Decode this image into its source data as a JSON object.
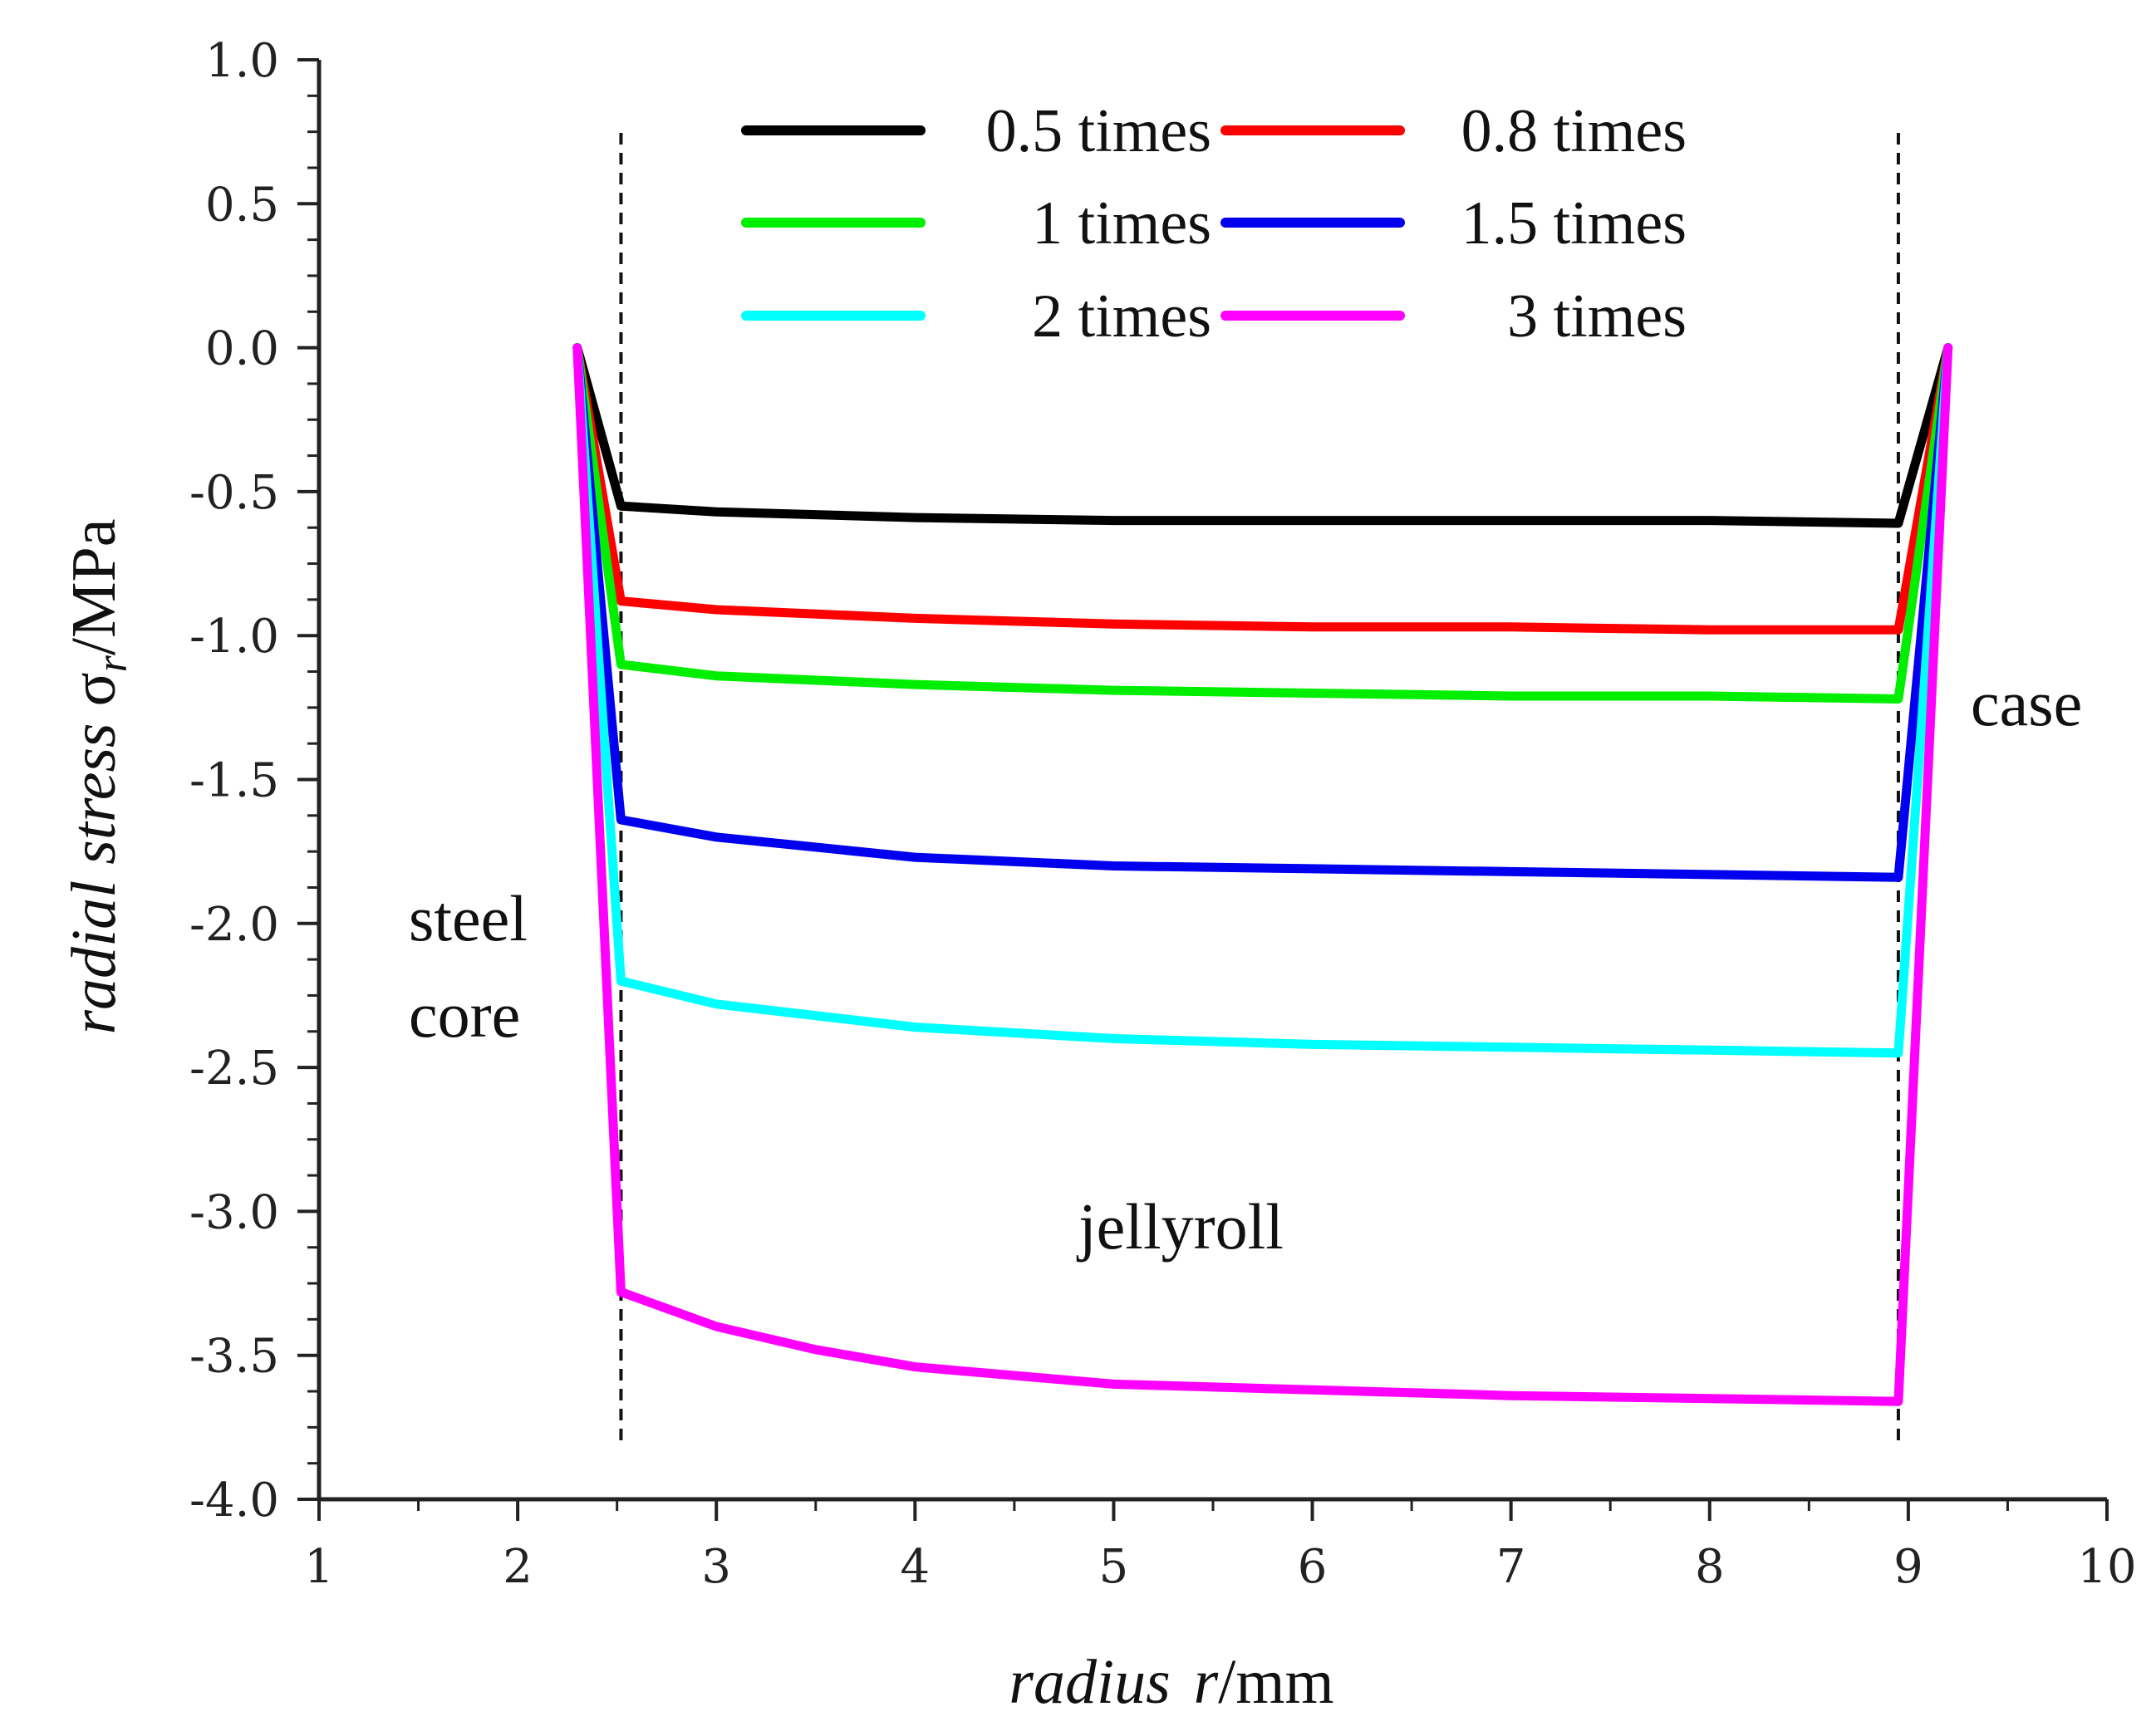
{
  "chart_data": {
    "type": "line",
    "title": "",
    "xlabel": {
      "italic": "radius",
      "symbol": "r",
      "unit": "/mm"
    },
    "ylabel": {
      "italic": "radial stress",
      "symbol": "σ",
      "subscript": "r",
      "unit": "/MPa"
    },
    "xlim": [
      1,
      10
    ],
    "ylim": [
      -4.0,
      1.0
    ],
    "xticks": [
      1,
      2,
      3,
      4,
      5,
      6,
      7,
      8,
      9,
      10
    ],
    "yticks": [
      1.0,
      0.5,
      0.0,
      -0.5,
      -1.0,
      -1.5,
      -2.0,
      -2.5,
      -3.0,
      -3.5,
      -4.0
    ],
    "ytick_labels": [
      "1.0",
      "0.5",
      "0.0",
      "-0.5",
      "-1.0",
      "-1.5",
      "-2.0",
      "-2.5",
      "-3.0",
      "-3.5",
      "-4.0"
    ],
    "legend_position": "top-center",
    "grid": false,
    "boundaries": [
      2.52,
      8.95
    ],
    "annotations": {
      "steel": "steel",
      "core": "core",
      "jellyroll": "jellyroll",
      "case": "case"
    },
    "series": [
      {
        "name": "0.5 times",
        "color": "#000000",
        "x": [
          2.3,
          2.52,
          3.0,
          4.0,
          5.0,
          6.0,
          7.0,
          8.0,
          8.95,
          9.2
        ],
        "y": [
          0.0,
          -0.55,
          -0.57,
          -0.59,
          -0.6,
          -0.6,
          -0.6,
          -0.6,
          -0.61,
          0.0
        ]
      },
      {
        "name": "0.8 times",
        "color": "#ff0000",
        "x": [
          2.3,
          2.52,
          3.0,
          4.0,
          5.0,
          6.0,
          7.0,
          8.0,
          8.95,
          9.2
        ],
        "y": [
          0.0,
          -0.88,
          -0.91,
          -0.94,
          -0.96,
          -0.97,
          -0.97,
          -0.98,
          -0.98,
          0.0
        ]
      },
      {
        "name": "1 times",
        "color": "#00ee00",
        "x": [
          2.3,
          2.52,
          3.0,
          4.0,
          5.0,
          6.0,
          7.0,
          8.0,
          8.95,
          9.2
        ],
        "y": [
          0.0,
          -1.1,
          -1.14,
          -1.17,
          -1.19,
          -1.2,
          -1.21,
          -1.21,
          -1.22,
          0.0
        ]
      },
      {
        "name": "1.5 times",
        "color": "#0000ee",
        "x": [
          2.3,
          2.52,
          3.0,
          4.0,
          5.0,
          6.0,
          7.0,
          8.0,
          8.95,
          9.2
        ],
        "y": [
          0.0,
          -1.64,
          -1.7,
          -1.77,
          -1.8,
          -1.81,
          -1.82,
          -1.83,
          -1.84,
          0.0
        ]
      },
      {
        "name": "2 times",
        "color": "#00ffff",
        "x": [
          2.3,
          2.52,
          3.0,
          4.0,
          5.0,
          6.0,
          7.0,
          8.0,
          8.95,
          9.2
        ],
        "y": [
          0.0,
          -2.2,
          -2.28,
          -2.36,
          -2.4,
          -2.42,
          -2.43,
          -2.44,
          -2.45,
          0.0
        ]
      },
      {
        "name": "3 times",
        "color": "#ff00ff",
        "x": [
          2.3,
          2.52,
          3.0,
          3.5,
          4.0,
          5.0,
          6.0,
          7.0,
          8.0,
          8.95,
          9.2
        ],
        "y": [
          0.0,
          -3.28,
          -3.4,
          -3.48,
          -3.54,
          -3.6,
          -3.62,
          -3.64,
          -3.65,
          -3.66,
          0.0
        ]
      }
    ]
  }
}
